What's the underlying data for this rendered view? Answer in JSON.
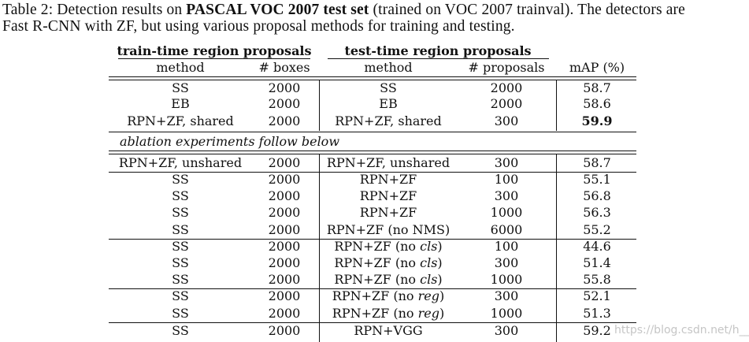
{
  "caption": {
    "prefix": "Table 2: Detection results on ",
    "bold": "PASCAL VOC 2007 test set",
    "line1_rest": " (trained on VOC 2007 trainval). The detectors are",
    "line2": "Fast R-CNN with ZF, but using various proposal methods for training and testing."
  },
  "header": {
    "train_group": "train-time region proposals",
    "test_group": "test-time region proposals",
    "col_method_train": "method",
    "col_boxes": "# boxes",
    "col_method_test": "method",
    "col_proposals": "# proposals",
    "col_map": "mAP (%)"
  },
  "ablation_label": "ablation experiments follow below",
  "rows": [
    {
      "train": "SS",
      "boxes": "2000",
      "test": "SS",
      "test_suffix": "",
      "props": "2000",
      "map": "58.7",
      "bold": false
    },
    {
      "train": "EB",
      "boxes": "2000",
      "test": "EB",
      "test_suffix": "",
      "props": "2000",
      "map": "58.6",
      "bold": false
    },
    {
      "train": "RPN+ZF, shared",
      "boxes": "2000",
      "test": "RPN+ZF, shared",
      "test_suffix": "",
      "props": "300",
      "map": "59.9",
      "bold": true
    },
    {
      "train": "RPN+ZF, unshared",
      "boxes": "2000",
      "test": "RPN+ZF, unshared",
      "test_suffix": "",
      "props": "300",
      "map": "58.7",
      "bold": false
    },
    {
      "train": "SS",
      "boxes": "2000",
      "test": "RPN+ZF",
      "test_suffix": "",
      "props": "100",
      "map": "55.1",
      "bold": false
    },
    {
      "train": "SS",
      "boxes": "2000",
      "test": "RPN+ZF",
      "test_suffix": "",
      "props": "300",
      "map": "56.8",
      "bold": false
    },
    {
      "train": "SS",
      "boxes": "2000",
      "test": "RPN+ZF",
      "test_suffix": "",
      "props": "1000",
      "map": "56.3",
      "bold": false
    },
    {
      "train": "SS",
      "boxes": "2000",
      "test": "RPN+ZF (no NMS)",
      "test_suffix": "",
      "props": "6000",
      "map": "55.2",
      "bold": false
    },
    {
      "train": "SS",
      "boxes": "2000",
      "test": "RPN+ZF (no ",
      "test_suffix": "cls",
      "props": "100",
      "map": "44.6",
      "bold": false
    },
    {
      "train": "SS",
      "boxes": "2000",
      "test": "RPN+ZF (no ",
      "test_suffix": "cls",
      "props": "300",
      "map": "51.4",
      "bold": false
    },
    {
      "train": "SS",
      "boxes": "2000",
      "test": "RPN+ZF (no ",
      "test_suffix": "cls",
      "props": "1000",
      "map": "55.8",
      "bold": false
    },
    {
      "train": "SS",
      "boxes": "2000",
      "test": "RPN+ZF (no ",
      "test_suffix": "reg",
      "props": "300",
      "map": "52.1",
      "bold": false
    },
    {
      "train": "SS",
      "boxes": "2000",
      "test": "RPN+ZF (no ",
      "test_suffix": "reg",
      "props": "1000",
      "map": "51.3",
      "bold": false
    },
    {
      "train": "SS",
      "boxes": "2000",
      "test": "RPN+VGG",
      "test_suffix": "",
      "props": "300",
      "map": "59.2",
      "bold": false
    }
  ],
  "watermark": "https://blog.csdn.net/h__ang"
}
